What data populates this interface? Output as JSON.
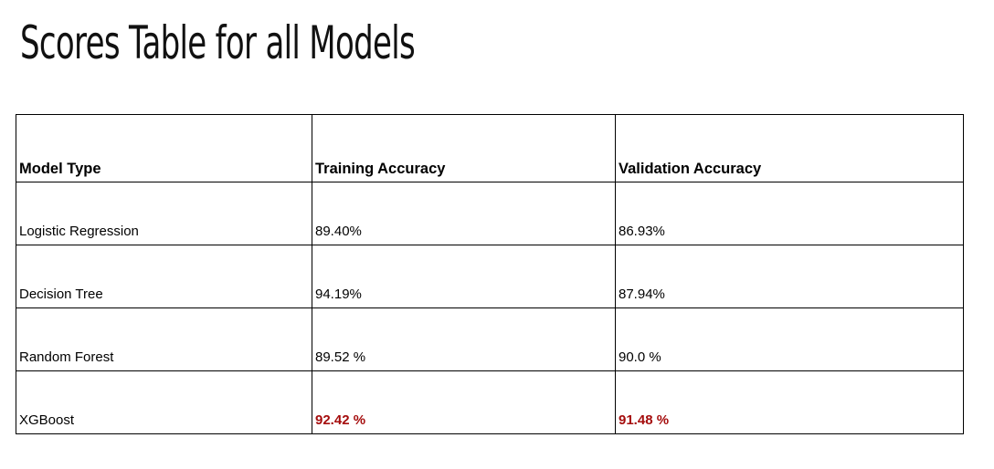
{
  "title": "Scores Table for all Models",
  "table": {
    "headers": [
      "Model Type",
      "Training Accuracy",
      "Validation Accuracy"
    ],
    "rows": [
      {
        "model": "Logistic Regression",
        "training": "89.40%",
        "validation": "86.93%"
      },
      {
        "model": "Decision Tree",
        "training": "94.19%",
        "validation": "87.94%"
      },
      {
        "model": "Random Forest",
        "training": "89.52 %",
        "validation": "90.0 %"
      },
      {
        "model": "XGBoost",
        "training": "92.42 %",
        "validation": "91.48 %"
      }
    ]
  },
  "colors": {
    "highlight": "#a50d0d",
    "border": "#000000"
  }
}
